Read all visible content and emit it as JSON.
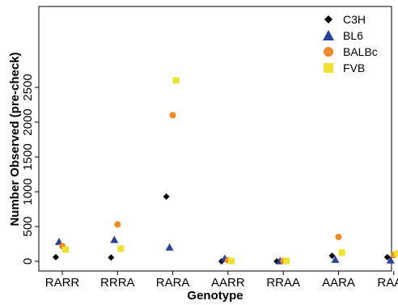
{
  "chart_data": {
    "type": "scatter",
    "title": "",
    "xlabel": "Genotype",
    "ylabel": "Number Observed (pre-check)",
    "categories": [
      "RARR",
      "RRRA",
      "RARA",
      "AARR",
      "RRAA",
      "AARA",
      "RAAA"
    ],
    "ylim": [
      0,
      2750
    ],
    "yticks": [
      0,
      500,
      1000,
      1500,
      2000,
      2500
    ],
    "grid": false,
    "legend_position": "top-right",
    "series": [
      {
        "name": "C3H",
        "marker": "diamond",
        "color": "#000000",
        "values": [
          60,
          55,
          930,
          0,
          0,
          80,
          60
        ]
      },
      {
        "name": "BL6",
        "marker": "triangle",
        "color": "#2b3f9e",
        "values": [
          280,
          310,
          200,
          40,
          5,
          25,
          15
        ]
      },
      {
        "name": "BALBc",
        "marker": "circle",
        "color": "#f08a24",
        "values": [
          220,
          530,
          2100,
          15,
          5,
          350,
          90
        ]
      },
      {
        "name": "FVB",
        "marker": "square",
        "color": "#ece32a",
        "values": [
          170,
          180,
          2600,
          5,
          5,
          125,
          110
        ]
      }
    ]
  }
}
